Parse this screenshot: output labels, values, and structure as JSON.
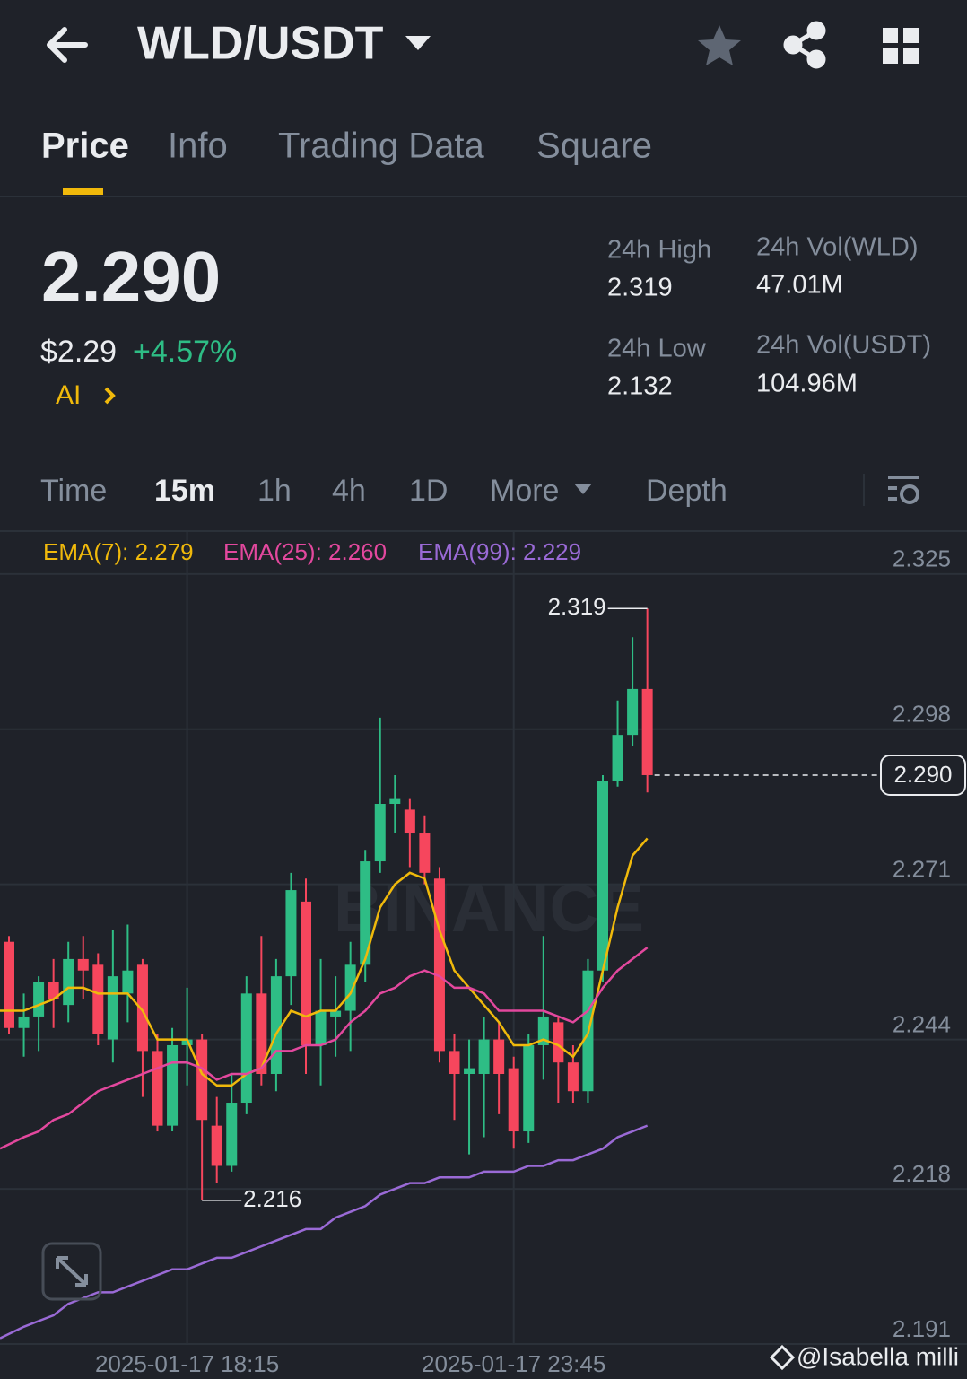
{
  "header": {
    "title": "WLD/USDT"
  },
  "tabs": [
    "Price",
    "Info",
    "Trading Data",
    "Square"
  ],
  "price": {
    "last": "2.290",
    "usd": "$2.29",
    "change": "+4.57%",
    "ai": "AI"
  },
  "stats": [
    {
      "label": "24h High",
      "value": "2.319"
    },
    {
      "label": "24h Low",
      "value": "2.132"
    },
    {
      "label": "24h Vol(WLD)",
      "value": "47.01M"
    },
    {
      "label": "24h Vol(USDT)",
      "value": "104.96M"
    }
  ],
  "intervals": [
    "Time",
    "15m",
    "1h",
    "4h",
    "1D",
    "More",
    "Depth"
  ],
  "chart_data": {
    "type": "candlestick",
    "categories": [
      null,
      null,
      null,
      null,
      null,
      null,
      null,
      null,
      null,
      null,
      null,
      null,
      "2025-01-17 18:15",
      null,
      null,
      null,
      null,
      null,
      null,
      null,
      null,
      null,
      null,
      null,
      null,
      null,
      null,
      null,
      null,
      null,
      null,
      null,
      null,
      null,
      "2025-01-17 23:45",
      null,
      null,
      null,
      null,
      null,
      null,
      null,
      null,
      null
    ],
    "open": [
      2.261,
      2.246,
      2.248,
      2.254,
      2.25,
      2.258,
      2.257,
      2.244,
      2.252,
      2.257,
      2.242,
      2.229,
      2.243,
      2.244,
      2.229,
      2.222,
      2.233,
      2.252,
      2.238,
      2.255,
      2.268,
      2.243,
      2.248,
      2.249,
      2.257,
      2.275,
      2.285,
      2.284,
      2.28,
      2.272,
      2.242,
      2.238,
      2.238,
      2.244,
      2.239,
      2.228,
      2.243,
      2.247,
      2.24,
      2.235,
      2.256,
      2.289,
      2.297,
      2.305
    ],
    "high": [
      2.262,
      2.252,
      2.255,
      2.258,
      2.261,
      2.262,
      2.259,
      2.263,
      2.264,
      2.258,
      2.245,
      2.246,
      2.253,
      2.245,
      2.234,
      2.238,
      2.255,
      2.262,
      2.258,
      2.273,
      2.272,
      2.258,
      2.255,
      2.261,
      2.277,
      2.3,
      2.29,
      2.286,
      2.283,
      2.274,
      2.245,
      2.244,
      2.248,
      2.247,
      2.241,
      2.245,
      2.262,
      2.248,
      2.243,
      2.258,
      2.29,
      2.303,
      2.314,
      2.319
    ],
    "low": [
      2.245,
      2.241,
      2.242,
      2.246,
      2.247,
      2.251,
      2.243,
      2.24,
      2.247,
      2.234,
      2.228,
      2.228,
      2.236,
      2.216,
      2.219,
      2.221,
      2.231,
      2.236,
      2.235,
      2.25,
      2.238,
      2.236,
      2.241,
      2.242,
      2.254,
      2.273,
      2.28,
      2.274,
      2.271,
      2.24,
      2.23,
      2.224,
      2.227,
      2.231,
      2.225,
      2.226,
      2.237,
      2.233,
      2.233,
      2.233,
      2.254,
      2.288,
      2.295,
      2.287
    ],
    "close": [
      2.246,
      2.248,
      2.254,
      2.251,
      2.258,
      2.256,
      2.245,
      2.255,
      2.256,
      2.242,
      2.229,
      2.243,
      2.244,
      2.23,
      2.222,
      2.233,
      2.252,
      2.238,
      2.255,
      2.27,
      2.243,
      2.249,
      2.249,
      2.257,
      2.275,
      2.285,
      2.286,
      2.28,
      2.273,
      2.242,
      2.238,
      2.239,
      2.244,
      2.238,
      2.228,
      2.243,
      2.248,
      2.24,
      2.235,
      2.256,
      2.289,
      2.297,
      2.305,
      2.29
    ],
    "up_color": "#2ebd85",
    "down_color": "#f6465d",
    "series": [
      {
        "name": "EMA(7): 2.279",
        "color": "#f0b90b",
        "values": [
          2.249,
          2.249,
          2.25,
          2.251,
          2.253,
          2.253,
          2.252,
          2.252,
          2.252,
          2.249,
          2.244,
          2.244,
          2.244,
          2.238,
          2.236,
          2.236,
          2.238,
          2.239,
          2.245,
          2.249,
          2.248,
          2.249,
          2.249,
          2.252,
          2.258,
          2.267,
          2.271,
          2.273,
          2.272,
          2.263,
          2.256,
          2.253,
          2.25,
          2.247,
          2.243,
          2.243,
          2.244,
          2.243,
          2.241,
          2.245,
          2.256,
          2.267,
          2.276,
          2.279
        ]
      },
      {
        "name": "EMA(25): 2.260",
        "color": "#e3489e",
        "values": [
          2.225,
          2.227,
          2.228,
          2.23,
          2.231,
          2.233,
          2.235,
          2.236,
          2.237,
          2.238,
          2.239,
          2.24,
          2.24,
          2.239,
          2.237,
          2.238,
          2.238,
          2.239,
          2.242,
          2.242,
          2.243,
          2.243,
          2.244,
          2.247,
          2.249,
          2.252,
          2.253,
          2.255,
          2.256,
          2.255,
          2.253,
          2.253,
          2.252,
          2.249,
          2.249,
          2.249,
          2.249,
          2.248,
          2.247,
          2.249,
          2.253,
          2.256,
          2.258,
          2.26
        ]
      },
      {
        "name": "EMA(99): 2.229",
        "color": "#9a6ad6",
        "values": [
          2.192,
          2.194,
          2.195,
          2.196,
          2.198,
          2.199,
          2.2,
          2.2,
          2.201,
          2.202,
          2.203,
          2.204,
          2.204,
          2.205,
          2.206,
          2.206,
          2.207,
          2.208,
          2.209,
          2.21,
          2.211,
          2.211,
          2.213,
          2.214,
          2.215,
          2.217,
          2.218,
          2.219,
          2.219,
          2.22,
          2.22,
          2.22,
          2.221,
          2.221,
          2.221,
          2.222,
          2.222,
          2.223,
          2.223,
          2.224,
          2.225,
          2.227,
          2.228,
          2.229
        ]
      }
    ],
    "ylim": [
      2.191,
      2.332
    ],
    "yticks": [
      2.325,
      2.298,
      2.271,
      2.244,
      2.218,
      2.191
    ],
    "grid": true,
    "annotations": {
      "high": {
        "value": 2.319,
        "label": "2.319"
      },
      "low": {
        "value": 2.216,
        "label": "2.216"
      },
      "last": {
        "value": 2.29,
        "label": "2.290"
      }
    },
    "watermark": "BINANCE"
  },
  "credit": "@Isabella milli"
}
